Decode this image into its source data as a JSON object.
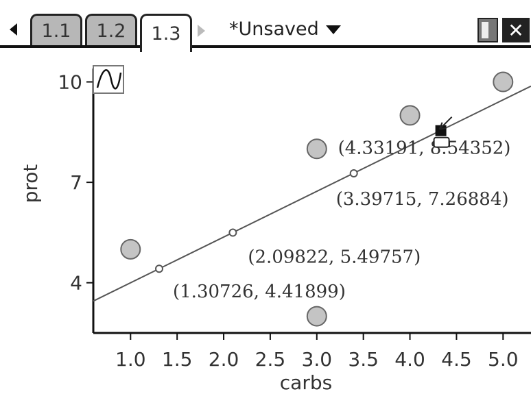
{
  "tabs": [
    {
      "label": "1.1",
      "active": false
    },
    {
      "label": "1.2",
      "active": false
    },
    {
      "label": "1.3",
      "active": true
    }
  ],
  "document_title": "*Unsaved",
  "icons": {
    "scroll_left": "triangle-left",
    "scroll_right": "triangle-right",
    "dropdown": "caret-down",
    "page_view": "page-icon",
    "close": "close-x",
    "graph_tool": "graph-icon",
    "cursor": "arrow-cursor"
  },
  "colors": {
    "point_fill": "#c4c4c4",
    "line": "#555555",
    "inactive_tab": "#b7b7b7"
  },
  "chart_data": {
    "type": "scatter",
    "xlabel": "carbs",
    "ylabel": "prot",
    "xlim": [
      0.6,
      5.3
    ],
    "ylim": [
      2.5,
      10.4
    ],
    "x_ticks": [
      "1.0",
      "1.5",
      "2.0",
      "2.5",
      "3.0",
      "3.5",
      "4.0",
      "4.5",
      "5.0"
    ],
    "y_ticks": [
      "4",
      "7",
      "10"
    ],
    "points": [
      {
        "x": 1,
        "y": 5
      },
      {
        "x": 3,
        "y": 3
      },
      {
        "x": 3,
        "y": 8
      },
      {
        "x": 4,
        "y": 9
      },
      {
        "x": 5,
        "y": 10
      }
    ],
    "regression_line": {
      "slope": 1.3662,
      "intercept": 2.6329
    },
    "traced_points": [
      {
        "x": 1.30726,
        "y": 4.41899,
        "label": "(1.30726, 4.41899)"
      },
      {
        "x": 2.09822,
        "y": 5.49757,
        "label": "(2.09822, 5.49757)"
      },
      {
        "x": 3.39715,
        "y": 7.26884,
        "label": "(3.39715, 7.26884)"
      },
      {
        "x": 4.33191,
        "y": 8.54352,
        "label": "(4.33191, 8.54352)"
      }
    ]
  }
}
